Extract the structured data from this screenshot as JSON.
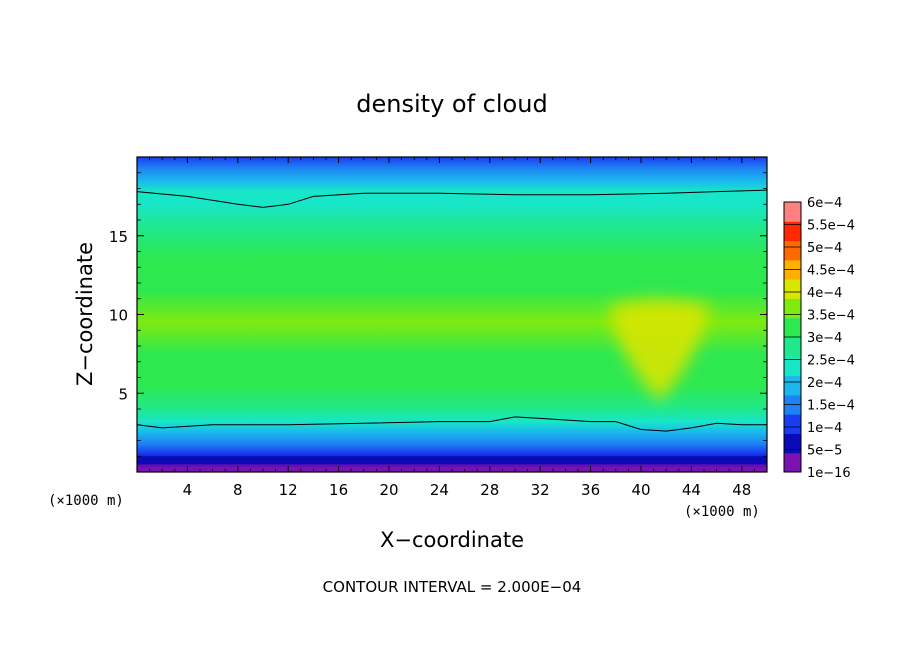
{
  "chart_data": {
    "type": "heatmap",
    "title": "density of cloud",
    "xlabel": "X−coordinate",
    "ylabel": "Z−coordinate",
    "x_unit_left": "(×1000 m)",
    "x_unit_right": "(×1000 m)",
    "xlim": [
      0,
      50
    ],
    "ylim": [
      0,
      20
    ],
    "x_ticks": [
      4,
      8,
      12,
      16,
      20,
      24,
      28,
      32,
      36,
      40,
      44,
      48
    ],
    "y_ticks": [
      5,
      10,
      15
    ],
    "x_tick_labels": [
      "4",
      "8",
      "12",
      "16",
      "20",
      "24",
      "28",
      "32",
      "36",
      "40",
      "44",
      "48"
    ],
    "y_tick_labels": [
      "5",
      "10",
      "15"
    ],
    "colorbar": {
      "labels": [
        "1e−16",
        "5e−5",
        "1e−4",
        "1.5e−4",
        "2e−4",
        "2.5e−4",
        "3e−4",
        "3.5e−4",
        "4e−4",
        "4.5e−4",
        "5e−4",
        "5.5e−4",
        "6e−4"
      ],
      "levels": [
        1e-16,
        5e-05,
        0.0001,
        0.00015,
        0.0002,
        0.00025,
        0.0003,
        0.00035,
        0.0004,
        0.00045,
        0.0005,
        0.00055,
        0.0006
      ],
      "colors": [
        "#7a12b0",
        "#0a0ab8",
        "#1a3cf0",
        "#1e82f5",
        "#1ab8ee",
        "#18e6c8",
        "#20e88c",
        "#2ee850",
        "#7eea10",
        "#d8e600",
        "#ffb000",
        "#ff6a00",
        "#ff2800",
        "#ff8080"
      ]
    },
    "density_profile": [
      {
        "z": 0.3,
        "value": 0.0
      },
      {
        "z": 0.7,
        "value": 3e-05
      },
      {
        "z": 1.2,
        "value": 7e-05
      },
      {
        "z": 1.8,
        "value": 0.00011
      },
      {
        "z": 2.5,
        "value": 0.00016
      },
      {
        "z": 3.2,
        "value": 0.00021
      },
      {
        "z": 4.0,
        "value": 0.00026
      },
      {
        "z": 5.5,
        "value": 0.00031
      },
      {
        "z": 7.5,
        "value": 0.00034
      },
      {
        "z": 9.5,
        "value": 0.000355
      },
      {
        "z": 11.5,
        "value": 0.00034
      },
      {
        "z": 13.5,
        "value": 0.00032
      },
      {
        "z": 15.5,
        "value": 0.00028
      },
      {
        "z": 17.0,
        "value": 0.00024
      },
      {
        "z": 17.8,
        "value": 0.0002
      },
      {
        "z": 18.5,
        "value": 0.00016
      },
      {
        "z": 19.3,
        "value": 0.00012
      },
      {
        "z": 20.0,
        "value": 9e-05
      }
    ],
    "features": [
      {
        "name": "dense plume",
        "x_center": 41.5,
        "z_top": 10.5,
        "z_bottom": 4.5,
        "half_width_top": 4.0,
        "value": 0.0004
      }
    ],
    "contour_upper": [
      [
        0,
        17.8
      ],
      [
        4,
        17.5
      ],
      [
        8,
        17.0
      ],
      [
        10,
        16.8
      ],
      [
        12,
        17.0
      ],
      [
        14,
        17.5
      ],
      [
        18,
        17.7
      ],
      [
        24,
        17.7
      ],
      [
        30,
        17.6
      ],
      [
        36,
        17.6
      ],
      [
        42,
        17.7
      ],
      [
        46,
        17.8
      ],
      [
        50,
        17.9
      ]
    ],
    "contour_lower": [
      [
        0,
        3.0
      ],
      [
        2,
        2.8
      ],
      [
        6,
        3.0
      ],
      [
        12,
        3.0
      ],
      [
        18,
        3.1
      ],
      [
        24,
        3.2
      ],
      [
        28,
        3.2
      ],
      [
        30,
        3.5
      ],
      [
        32,
        3.4
      ],
      [
        34,
        3.3
      ],
      [
        36,
        3.2
      ],
      [
        38,
        3.2
      ],
      [
        40,
        2.7
      ],
      [
        42,
        2.6
      ],
      [
        44,
        2.8
      ],
      [
        46,
        3.1
      ],
      [
        48,
        3.0
      ],
      [
        50,
        3.0
      ]
    ],
    "grid": false,
    "legend": "right"
  },
  "annotation": "CONTOUR INTERVAL = 2.000E−04"
}
